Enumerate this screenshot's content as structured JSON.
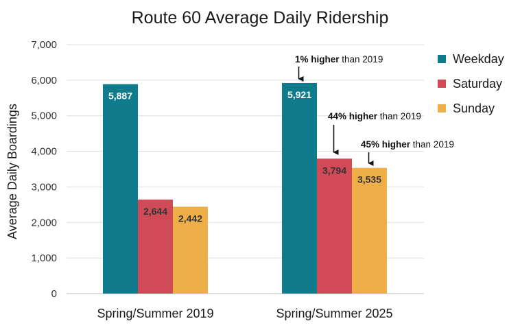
{
  "chart_data": {
    "type": "bar",
    "title": "Route 60 Average Daily Ridership",
    "ylabel": "Average Daily Boardings",
    "xlabel": "",
    "ylim": [
      0,
      7000
    ],
    "yticks": [
      "0",
      "1,000",
      "2,000",
      "3,000",
      "4,000",
      "5,000",
      "6,000",
      "7,000"
    ],
    "ytick_values": [
      0,
      1000,
      2000,
      3000,
      4000,
      5000,
      6000,
      7000
    ],
    "categories": [
      "Spring/Summer 2019",
      "Spring/Summer 2025"
    ],
    "series": [
      {
        "name": "Weekday",
        "color": "#0f7b8c",
        "values": [
          5887,
          5921
        ],
        "labels": [
          "5,887",
          "5,921"
        ],
        "label_color": "#ffffff"
      },
      {
        "name": "Saturday",
        "color": "#d04a58",
        "values": [
          2644,
          3794
        ],
        "labels": [
          "2,644",
          "3,794"
        ],
        "label_color": "#333333"
      },
      {
        "name": "Sunday",
        "color": "#efaf48",
        "values": [
          2442,
          3535
        ],
        "labels": [
          "2,442",
          "3,535"
        ],
        "label_color": "#333333"
      }
    ],
    "grid": true,
    "legend": "top-right",
    "annotations": [
      {
        "series": "Weekday",
        "category": "Spring/Summer 2025",
        "bold": "1% higher",
        "rest": " than 2019"
      },
      {
        "series": "Saturday",
        "category": "Spring/Summer 2025",
        "bold": "44% higher",
        "rest": " than 2019"
      },
      {
        "series": "Sunday",
        "category": "Spring/Summer 2025",
        "bold": "45% higher",
        "rest": " than 2019"
      }
    ]
  }
}
